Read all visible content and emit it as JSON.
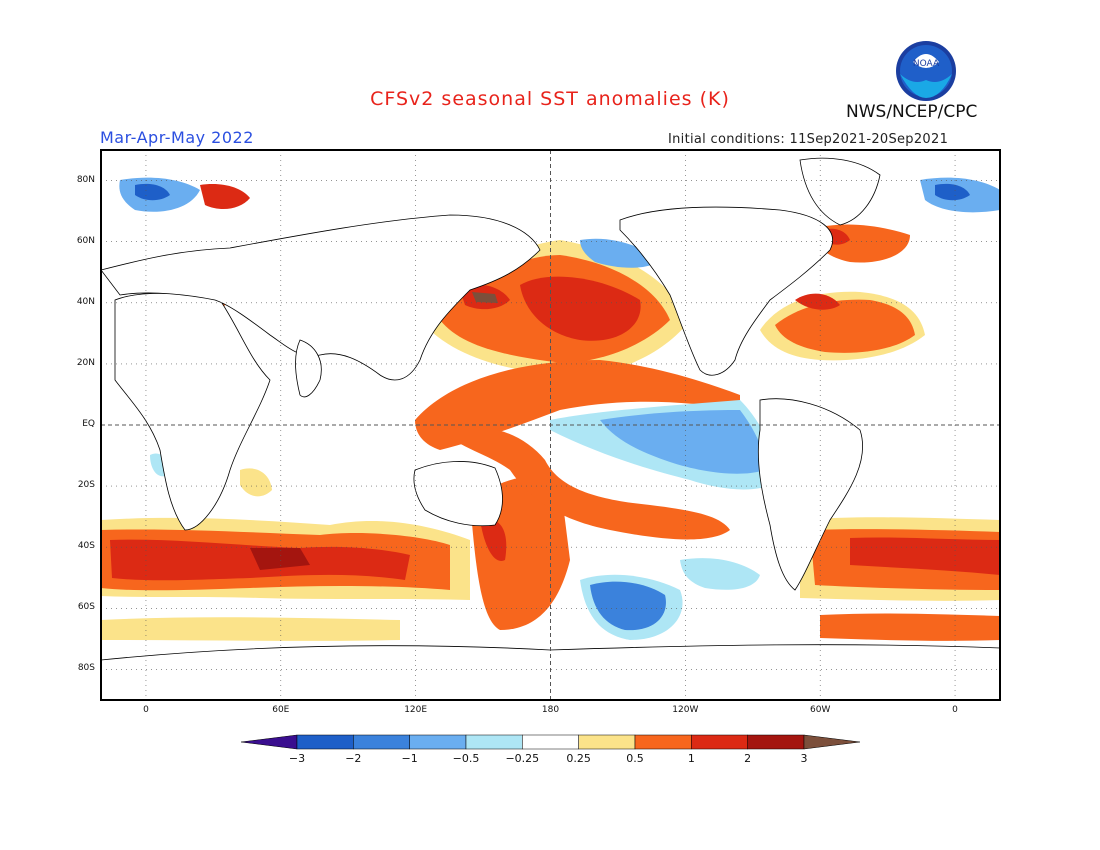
{
  "header": {
    "title": "CFSv2 seasonal SST anomalies (K)",
    "agency": "NWS/NCEP/CPC",
    "logo_text": "NOAA",
    "season": "Mar-Apr-May 2022",
    "initial_conditions": "Initial conditions: 11Sep2021-20Sep2021"
  },
  "map": {
    "projection": "equirectangular",
    "lon_range": [
      -20,
      380
    ],
    "lat_range": [
      -90,
      90
    ],
    "grid": "dotted",
    "reference_lines": [
      "equator",
      "dateline 180"
    ],
    "lat_ticks": [
      "80N",
      "60N",
      "40N",
      "20N",
      "EQ",
      "20S",
      "40S",
      "60S",
      "80S"
    ],
    "lon_ticks": [
      "0",
      "60E",
      "120E",
      "180",
      "120W",
      "60W",
      "0"
    ]
  },
  "colorbar": {
    "ticks": [
      "−3",
      "−2",
      "−1",
      "−0.5",
      "−0.25",
      "0.25",
      "0.5",
      "1",
      "2",
      "3"
    ],
    "colors": [
      "#3a0e8f",
      "#1e5fc8",
      "#3b82dc",
      "#6aaef0",
      "#aee6f5",
      "#ffffff",
      "#fbe38a",
      "#f7661d",
      "#dc2a14",
      "#a4150f",
      "#7c4f3b"
    ]
  }
}
